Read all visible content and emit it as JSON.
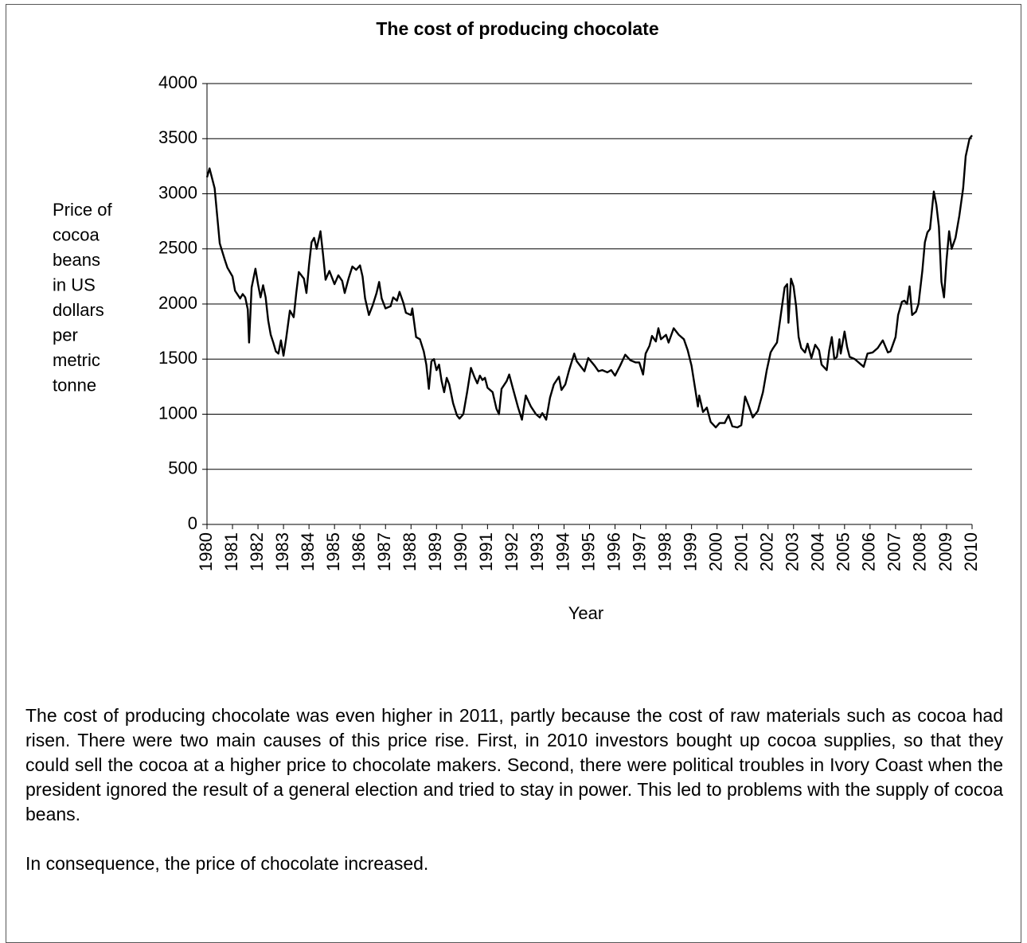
{
  "chart_data": {
    "type": "line",
    "title": "The cost of producing chocolate",
    "xlabel": "Year",
    "ylabel_lines": [
      "Price of",
      "cocoa",
      "beans",
      "in US",
      "dollars",
      "per",
      "metric",
      "tonne"
    ],
    "xlim": [
      1980,
      2010
    ],
    "ylim": [
      0,
      4000
    ],
    "xticks": [
      1980,
      1981,
      1982,
      1983,
      1984,
      1985,
      1986,
      1987,
      1988,
      1989,
      1990,
      1991,
      1992,
      1993,
      1994,
      1995,
      1996,
      1997,
      1998,
      1999,
      2000,
      2001,
      2002,
      2003,
      2004,
      2005,
      2006,
      2007,
      2008,
      2009,
      2010
    ],
    "yticks": [
      0,
      500,
      1000,
      1500,
      2000,
      2500,
      3000,
      3500,
      4000
    ],
    "grid": true,
    "series": [
      {
        "color": "#000000",
        "x": [
          1980.0,
          1980.1,
          1980.3,
          1980.4,
          1980.5,
          1980.7,
          1980.8,
          1981.0,
          1981.1,
          1981.3,
          1981.4,
          1981.5,
          1981.6,
          1981.65,
          1981.75,
          1981.9,
          1982.0,
          1982.1,
          1982.2,
          1982.3,
          1982.4,
          1982.5,
          1982.6,
          1982.7,
          1982.8,
          1982.9,
          1983.0,
          1983.1,
          1983.25,
          1983.4,
          1983.5,
          1983.6,
          1983.8,
          1983.9,
          1984.0,
          1984.1,
          1984.2,
          1984.3,
          1984.45,
          1984.55,
          1984.65,
          1984.8,
          1985.0,
          1985.15,
          1985.3,
          1985.4,
          1985.55,
          1985.7,
          1985.85,
          1986.0,
          1986.1,
          1986.2,
          1986.35,
          1986.5,
          1986.65,
          1986.75,
          1986.85,
          1987.0,
          1987.2,
          1987.3,
          1987.45,
          1987.55,
          1987.7,
          1987.8,
          1988.0,
          1988.05,
          1988.2,
          1988.35,
          1988.5,
          1988.6,
          1988.7,
          1988.8,
          1988.9,
          1989.0,
          1989.1,
          1989.2,
          1989.3,
          1989.4,
          1989.5,
          1989.65,
          1989.8,
          1989.9,
          1990.05,
          1990.2,
          1990.35,
          1990.5,
          1990.6,
          1990.7,
          1990.8,
          1990.9,
          1991.0,
          1991.2,
          1991.35,
          1991.45,
          1991.55,
          1991.75,
          1991.85,
          1992.0,
          1992.2,
          1992.35,
          1992.5,
          1992.7,
          1992.9,
          1993.05,
          1993.15,
          1993.3,
          1993.45,
          1993.6,
          1993.8,
          1993.9,
          1994.05,
          1994.2,
          1994.4,
          1994.5,
          1994.8,
          1994.95,
          1995.2,
          1995.35,
          1995.5,
          1995.7,
          1995.85,
          1996.0,
          1996.2,
          1996.4,
          1996.6,
          1996.8,
          1996.95,
          1997.1,
          1997.2,
          1997.35,
          1997.45,
          1997.6,
          1997.7,
          1997.8,
          1998.0,
          1998.1,
          1998.3,
          1998.5,
          1998.7,
          1998.85,
          1999.0,
          1999.15,
          1999.25,
          1999.3,
          1999.45,
          1999.6,
          1999.75,
          1999.95,
          2000.1,
          2000.3,
          2000.45,
          2000.6,
          2000.8,
          2000.95,
          2001.1,
          2001.25,
          2001.4,
          2001.6,
          2001.8,
          2001.95,
          2002.1,
          2002.2,
          2002.35,
          2002.5,
          2002.65,
          2002.75,
          2002.8,
          2002.9,
          2003.0,
          2003.1,
          2003.2,
          2003.3,
          2003.45,
          2003.55,
          2003.7,
          2003.85,
          2004.0,
          2004.1,
          2004.3,
          2004.4,
          2004.5,
          2004.6,
          2004.7,
          2004.8,
          2004.85,
          2005.0,
          2005.1,
          2005.2,
          2005.4,
          2005.6,
          2005.75,
          2005.9,
          2006.1,
          2006.3,
          2006.5,
          2006.7,
          2006.8,
          2007.0,
          2007.1,
          2007.25,
          2007.35,
          2007.45,
          2007.55,
          2007.65,
          2007.8,
          2007.9,
          2008.05,
          2008.15,
          2008.25,
          2008.35,
          2008.5,
          2008.6,
          2008.7,
          2008.8,
          2008.9,
          2009.0,
          2009.1,
          2009.2,
          2009.35,
          2009.5,
          2009.65,
          2009.75,
          2009.9,
          2010.0
        ],
        "values": [
          3150,
          3230,
          3050,
          2800,
          2550,
          2400,
          2330,
          2250,
          2120,
          2050,
          2090,
          2060,
          1950,
          1650,
          2150,
          2320,
          2180,
          2060,
          2170,
          2060,
          1850,
          1720,
          1650,
          1570,
          1550,
          1670,
          1530,
          1680,
          1940,
          1880,
          2100,
          2290,
          2230,
          2100,
          2350,
          2560,
          2600,
          2500,
          2660,
          2450,
          2220,
          2300,
          2180,
          2260,
          2210,
          2100,
          2230,
          2340,
          2310,
          2350,
          2250,
          2050,
          1900,
          1990,
          2100,
          2200,
          2050,
          1960,
          1980,
          2060,
          2030,
          2110,
          2010,
          1920,
          1900,
          1960,
          1700,
          1680,
          1570,
          1450,
          1230,
          1480,
          1500,
          1400,
          1450,
          1300,
          1200,
          1330,
          1270,
          1100,
          990,
          960,
          1000,
          1200,
          1420,
          1330,
          1280,
          1350,
          1310,
          1330,
          1240,
          1200,
          1050,
          1000,
          1230,
          1300,
          1360,
          1230,
          1060,
          950,
          1170,
          1070,
          1000,
          970,
          1010,
          950,
          1150,
          1270,
          1340,
          1220,
          1270,
          1400,
          1550,
          1480,
          1390,
          1510,
          1440,
          1390,
          1400,
          1380,
          1400,
          1350,
          1440,
          1540,
          1490,
          1470,
          1470,
          1360,
          1550,
          1620,
          1710,
          1660,
          1780,
          1680,
          1720,
          1650,
          1780,
          1720,
          1680,
          1580,
          1440,
          1220,
          1070,
          1170,
          1020,
          1060,
          930,
          880,
          920,
          920,
          990,
          890,
          880,
          900,
          1160,
          1070,
          970,
          1030,
          1200,
          1400,
          1560,
          1600,
          1650,
          1900,
          2150,
          2180,
          1830,
          2230,
          2160,
          1980,
          1700,
          1600,
          1560,
          1640,
          1510,
          1630,
          1580,
          1450,
          1400,
          1580,
          1700,
          1500,
          1520,
          1680,
          1550,
          1750,
          1610,
          1520,
          1500,
          1460,
          1430,
          1550,
          1560,
          1600,
          1670,
          1560,
          1570,
          1700,
          1900,
          2020,
          2030,
          2000,
          2160,
          1900,
          1930,
          2000,
          2300,
          2560,
          2650,
          2680,
          3020,
          2900,
          2700,
          2200,
          2060,
          2400,
          2660,
          2500,
          2600,
          2800,
          3050,
          3340,
          3500,
          3530
        ]
      }
    ]
  },
  "text": {
    "paragraphs": [
      "The cost of producing chocolate was even higher in 2011, partly because the cost of raw materials such as cocoa had risen. There were two main causes of this price rise. First, in 2010 investors bought up cocoa supplies, so that they could sell the cocoa at a higher price to chocolate makers. Second, there were political troubles in Ivory Coast when the president ignored the result of a general election and tried to stay in power. This led to problems with the supply of cocoa beans.",
      "In consequence, the price of chocolate increased."
    ]
  }
}
